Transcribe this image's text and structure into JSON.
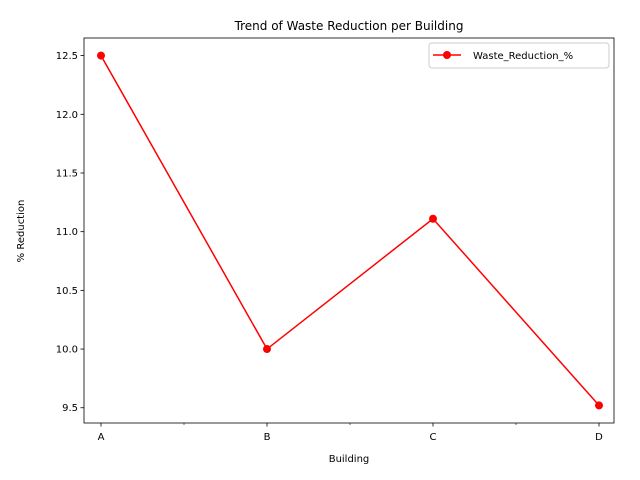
{
  "chart_data": {
    "type": "line",
    "title": "Trend of Waste Reduction per Building",
    "xlabel": "Building",
    "ylabel": "% Reduction",
    "categories": [
      "A",
      "B",
      "C",
      "D"
    ],
    "series": [
      {
        "name": "Waste_Reduction_%",
        "values": [
          12.5,
          10.0,
          11.11,
          9.52
        ],
        "color": "#ff0000",
        "marker": "circle"
      }
    ],
    "ylim": [
      9.37,
      12.65
    ],
    "yticks": [
      9.5,
      10.0,
      10.5,
      11.0,
      11.5,
      12.0,
      12.5
    ],
    "ytick_labels": [
      "9.5",
      "10.0",
      "10.5",
      "11.0",
      "11.5",
      "12.0",
      "12.5"
    ],
    "grid": false,
    "legend_position": "top-right"
  }
}
